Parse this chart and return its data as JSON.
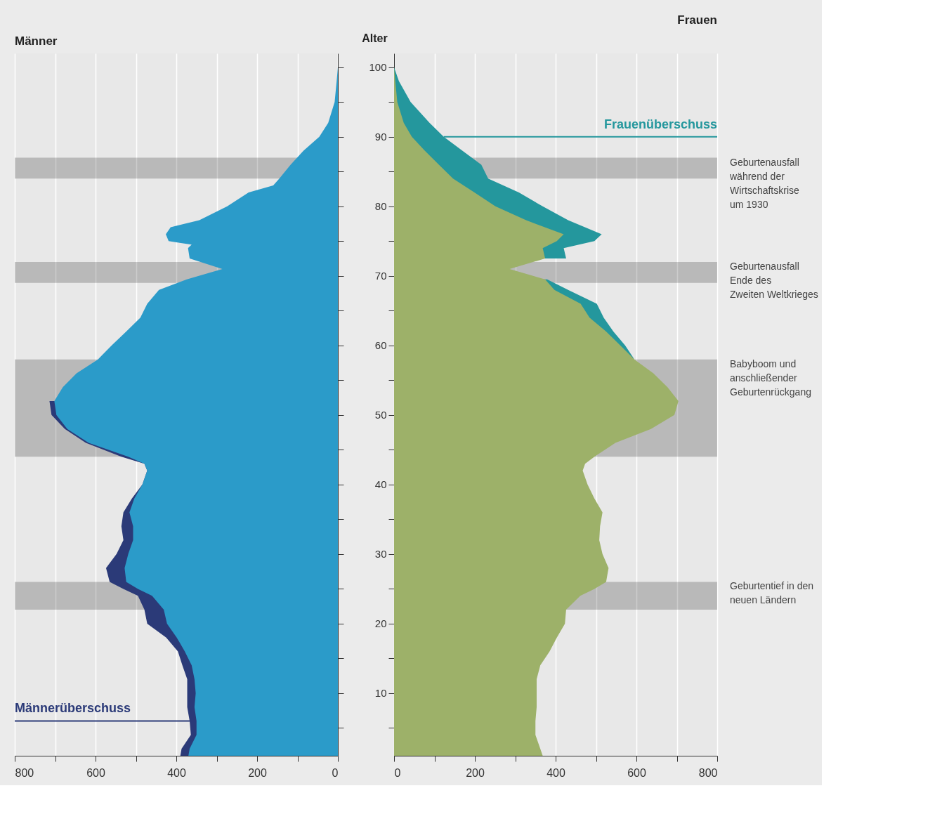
{
  "chart_data": [
    {
      "type": "area",
      "orientation": "horizontal",
      "title": "Männer",
      "tick_labels": "x",
      "grid": "x",
      "xlim": [
        800,
        0
      ],
      "xticks": [
        800,
        {
          "value": 700,
          "label": null
        },
        600,
        {
          "value": 500,
          "label": null
        },
        400,
        {
          "value": 300,
          "label": null
        },
        200,
        {
          "value": 100,
          "label": null
        },
        0
      ],
      "ylim": [
        1,
        102
      ],
      "yticks": [
        {
          "value": 5,
          "label": null
        },
        10,
        {
          "value": 15,
          "label": null
        },
        20,
        {
          "value": 25,
          "label": null
        },
        30,
        {
          "value": 35,
          "label": null
        },
        40,
        {
          "value": 45,
          "label": null
        },
        50,
        {
          "value": 55,
          "label": null
        },
        60,
        {
          "value": 65,
          "label": null
        },
        70,
        {
          "value": 75,
          "label": null
        },
        80,
        {
          "value": 85,
          "label": null
        },
        90,
        {
          "value": 95,
          "label": null
        },
        100
      ],
      "x": [
        1,
        2,
        4,
        6,
        8,
        10,
        12,
        14,
        16,
        18,
        20,
        22,
        24,
        25,
        26,
        28,
        30,
        32,
        34,
        36,
        38,
        40,
        42,
        43,
        44,
        46,
        48,
        50,
        52,
        54,
        56,
        58,
        60,
        62,
        64,
        66,
        68,
        69.5,
        71,
        72.5,
        74,
        74.5,
        75,
        76,
        77,
        78,
        80,
        82,
        83,
        84,
        86,
        88,
        90,
        92,
        95,
        98,
        100
      ],
      "series": [
        {
          "color": "#2b3a78",
          "values": [
            390,
            387,
            364,
            367,
            373,
            373,
            373,
            385,
            396,
            425,
            472,
            479,
            495,
            531,
            565,
            574,
            548,
            531,
            536,
            531,
            510,
            484,
            472,
            479,
            536,
            624,
            676,
            709,
            714,
            null,
            null,
            null,
            null,
            null,
            null,
            null,
            null,
            null,
            null,
            null,
            null,
            null,
            null,
            null,
            null,
            null,
            null,
            null,
            null,
            null,
            null,
            null,
            null,
            null,
            null,
            null,
            null
          ]
        },
        {
          "color": "#2b9bc9",
          "values": [
            370,
            367,
            350,
            350,
            355,
            352,
            355,
            362,
            379,
            399,
            423,
            431,
            460,
            495,
            524,
            528,
            519,
            507,
            507,
            516,
            504,
            484,
            472,
            479,
            519,
            617,
            670,
            697,
            702,
            681,
            647,
            594,
            560,
            524,
            489,
            472,
            443,
            374,
            286,
            367,
            371,
            362,
            419,
            426,
            414,
            343,
            274,
            221,
            160,
            145,
            117,
            85,
            46,
            24,
            8,
            3,
            0
          ]
        }
      ],
      "bands": [
        {
          "axis": "y",
          "from": 84,
          "to": 87,
          "color": "#cccccc"
        },
        {
          "axis": "y",
          "from": 69,
          "to": 72,
          "color": "#cccccc"
        },
        {
          "axis": "y",
          "from": 44,
          "to": 58,
          "color": "#cccccc"
        },
        {
          "axis": "y",
          "from": 22,
          "to": 26,
          "color": "#cccccc"
        }
      ],
      "annotations": [
        {
          "text": "Männerüberschuss",
          "x": 367,
          "y": 6
        }
      ]
    },
    {
      "type": "area",
      "orientation": "horizontal",
      "title": "Frauen",
      "ylabel": "Alter",
      "grid": "x",
      "xlim": [
        0,
        800
      ],
      "xticks": [
        0,
        {
          "value": 100,
          "label": null
        },
        200,
        {
          "value": 300,
          "label": null
        },
        400,
        {
          "value": 500,
          "label": null
        },
        600,
        {
          "value": 700,
          "label": null
        },
        800
      ],
      "ylim": [
        1,
        102
      ],
      "yticks": [
        {
          "value": 5,
          "label": null
        },
        10,
        {
          "value": 15,
          "label": null
        },
        20,
        {
          "value": 25,
          "label": null
        },
        30,
        {
          "value": 35,
          "label": null
        },
        40,
        {
          "value": 45,
          "label": null
        },
        50,
        {
          "value": 55,
          "label": null
        },
        60,
        {
          "value": 65,
          "label": null
        },
        70,
        {
          "value": 75,
          "label": null
        },
        80,
        {
          "value": 85,
          "label": null
        },
        90,
        {
          "value": 95,
          "label": null
        },
        100
      ],
      "x": [
        1,
        2,
        4,
        6,
        8,
        10,
        12,
        14,
        16,
        18,
        20,
        22,
        24,
        25,
        26,
        28,
        30,
        32,
        34,
        36,
        38,
        40,
        42,
        43,
        44,
        46,
        48,
        50,
        52,
        54,
        56,
        58,
        60,
        62,
        64,
        66,
        68,
        69.5,
        71,
        72.5,
        74,
        75,
        76,
        78,
        80,
        82,
        84,
        86,
        88,
        90,
        92,
        95,
        98,
        100
      ],
      "series": [
        {
          "color": "#24979d",
          "values": [
            null,
            null,
            null,
            null,
            null,
            null,
            null,
            null,
            null,
            null,
            null,
            null,
            null,
            null,
            null,
            null,
            null,
            null,
            null,
            null,
            null,
            null,
            null,
            null,
            null,
            null,
            null,
            null,
            null,
            null,
            null,
            595,
            572,
            543,
            519,
            502,
            431,
            379,
            null,
            426,
            420,
            496,
            514,
            431,
            368,
            309,
            233,
            216,
            169,
            123,
            88,
            41,
            12,
            0
          ]
        },
        {
          "color": "#9db169",
          "values": [
            368,
            362,
            350,
            350,
            353,
            353,
            353,
            362,
            385,
            403,
            423,
            426,
            461,
            496,
            525,
            531,
            516,
            508,
            510,
            516,
            496,
            479,
            467,
            473,
            496,
            548,
            636,
            694,
            704,
            677,
            642,
            595,
            560,
            525,
            484,
            462,
            397,
            374,
            286,
            374,
            368,
            403,
            420,
            327,
            251,
            199,
            146,
            111,
            76,
            44,
            24,
            8,
            3,
            0
          ]
        }
      ],
      "bands": [
        {
          "axis": "y",
          "from": 84,
          "to": 87,
          "color": "#cccccc",
          "label": "Geburtenausfall\nwährend der\nWirtschaftskrise\num 1930"
        },
        {
          "axis": "y",
          "from": 69,
          "to": 72,
          "color": "#cccccc",
          "label": "Geburtenausfall\nEnde des\nZweiten Weltkrieges"
        },
        {
          "axis": "y",
          "from": 44,
          "to": 58,
          "color": "#cccccc",
          "label": "Babyboom und\nanschließender\nGeburtenrückgang"
        },
        {
          "axis": "y",
          "from": 22,
          "to": 26,
          "color": "#cccccc",
          "label": "Geburtentief in den\nneuen Ländern"
        }
      ],
      "annotations": [
        {
          "text": "Frauenüberschuss",
          "x": 123,
          "y": 90
        }
      ]
    }
  ]
}
